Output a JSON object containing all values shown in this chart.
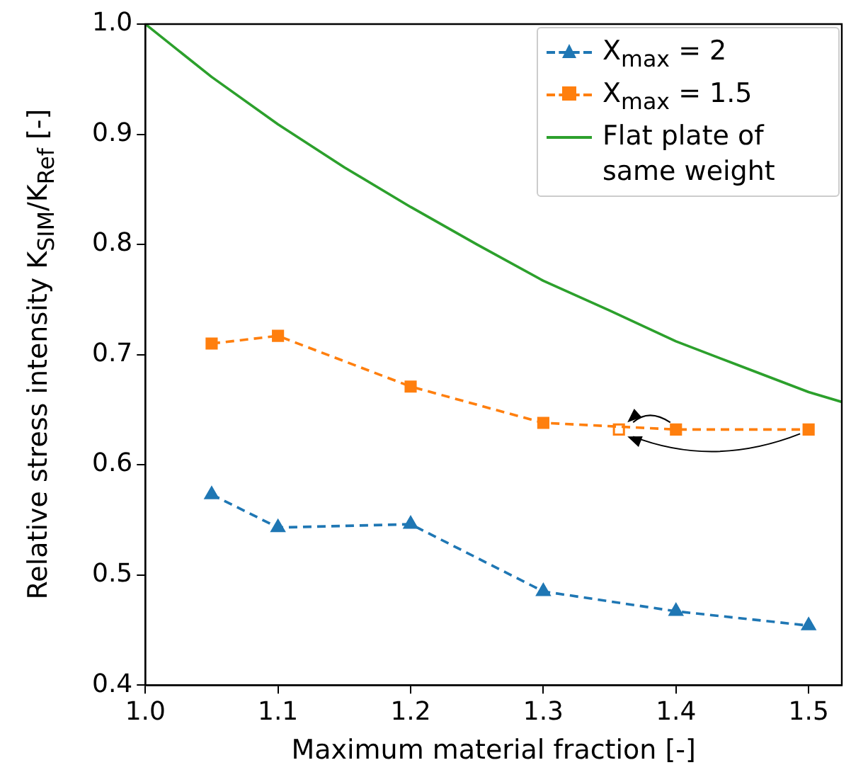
{
  "chart_data": {
    "type": "line",
    "xlabel": "Maximum material fraction [-]",
    "ylabel": "Relative stress intensity K$_{SIM}$/K$_{Ref}$ [-]",
    "xlim": [
      1.0,
      1.525
    ],
    "xticks": [
      {
        "value": 1,
        "label": "1.0"
      },
      1.1,
      1.2,
      1.3,
      1.4,
      1.5
    ],
    "ylim": [
      0.4,
      1.0
    ],
    "yticks": [
      0.4,
      0.5,
      0.6,
      0.7,
      0.8,
      0.9,
      {
        "value": 1,
        "label": "1.0"
      }
    ],
    "grid": false,
    "legend": "top right",
    "series": [
      {
        "name": "X$_{max}$ = 2",
        "color": "#1f77b4",
        "marker": "triangle",
        "line_style": "dashed",
        "x": [
          1.05,
          1.1,
          1.2,
          1.3,
          1.4,
          1.5
        ],
        "values": [
          0.573,
          0.543,
          0.546,
          0.485,
          0.467,
          0.454
        ]
      },
      {
        "name": "X$_{max}$ = 1.5",
        "color": "#ff7f0e",
        "marker": "square",
        "line_style": "dashed",
        "x": [
          1.05,
          1.1,
          1.2,
          1.3,
          1.4,
          1.5
        ],
        "values": [
          0.71,
          0.717,
          0.671,
          0.638,
          0.632,
          0.632
        ]
      },
      {
        "name": "Flat plate of same weight",
        "color": "#2ca02c",
        "marker": "none",
        "line_style": "solid",
        "x": [
          1.0,
          1.05,
          1.1,
          1.15,
          1.2,
          1.25,
          1.3,
          1.35,
          1.4,
          1.45,
          1.5,
          1.525
        ],
        "values": [
          1.0,
          0.952,
          0.909,
          0.87,
          0.834,
          0.8,
          0.767,
          0.74,
          0.712,
          0.689,
          0.666,
          0.657
        ]
      },
      {
        "type": "scatter",
        "color": "#ff7f0e",
        "marker": "square",
        "x": [
          1.357
        ],
        "values": [
          0.632
        ]
      }
    ]
  }
}
